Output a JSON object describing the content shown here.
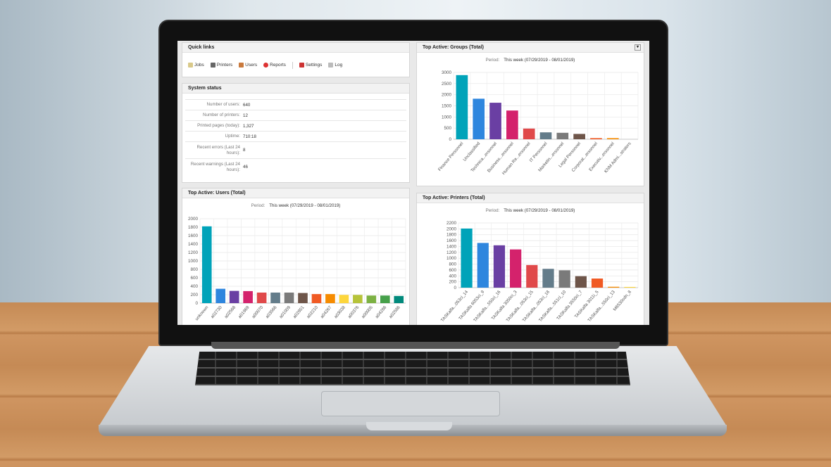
{
  "quick_links": {
    "title": "Quick links",
    "items": [
      {
        "label": "Jobs",
        "icon": "jobs-icon"
      },
      {
        "label": "Printers",
        "icon": "printer-icon"
      },
      {
        "label": "Users",
        "icon": "user-icon"
      },
      {
        "label": "Reports",
        "icon": "reports-icon"
      },
      {
        "label": "Settings",
        "icon": "settings-icon"
      },
      {
        "label": "Log",
        "icon": "log-icon"
      }
    ]
  },
  "system_status": {
    "title": "System status",
    "rows": [
      {
        "key": "Number of users:",
        "value": "640"
      },
      {
        "key": "Number of printers:",
        "value": "12"
      },
      {
        "key": "Printed pages (today):",
        "value": "1,327"
      },
      {
        "key": "Uptime:",
        "value": "710:18"
      },
      {
        "key": "Recent errors (Last 24 hours):",
        "value": "8"
      },
      {
        "key": "Recent warnings (Last 24 hours):",
        "value": "46"
      }
    ]
  },
  "period_label": "Period:",
  "period_value": "This week (07/29/2019 - 08/01/2019)",
  "colors": [
    "#00a3b9",
    "#2e86de",
    "#6a3fa3",
    "#d4226c",
    "#e0494a",
    "#637c8a",
    "#7a7a7a",
    "#6e5549",
    "#f05a24",
    "#f68b00",
    "#fdd63c",
    "#b6c339",
    "#7cb143",
    "#46a04a",
    "#00897b"
  ],
  "chart_data": [
    {
      "id": "users",
      "type": "bar",
      "title": "Top Active: Users (Total)",
      "ylim": [
        0,
        2000
      ],
      "yticks": [
        0,
        200,
        400,
        600,
        800,
        1000,
        1200,
        1400,
        1600,
        1800,
        2000
      ],
      "grid": true,
      "categories": [
        "unknown",
        "a02730",
        "a02568",
        "a01969",
        "a00070",
        "a03566",
        "a01009",
        "a02851",
        "a02210",
        "a04267",
        "a03038",
        "a00376",
        "a00005",
        "a04286",
        "a02586"
      ],
      "values": [
        1820,
        340,
        290,
        285,
        250,
        250,
        250,
        240,
        215,
        215,
        195,
        195,
        180,
        180,
        170
      ]
    },
    {
      "id": "groups",
      "type": "bar",
      "title": "Top Active: Groups (Total)",
      "ylim": [
        0,
        3000
      ],
      "yticks": [
        0,
        500,
        1000,
        1500,
        2000,
        2500,
        3000
      ],
      "grid": true,
      "categories": [
        "Finance Personnel",
        "Unclassified",
        "Technica...ersonnel",
        "Business...ersonnel",
        "Human Re...ersonnel",
        "IT Personnel",
        "Marketin...ersonnel",
        "Legal Personnel",
        "Corporat...ersonnel",
        "Executiv...ersonnel",
        "KNM Admi...strators"
      ],
      "values": [
        2880,
        1820,
        1640,
        1290,
        480,
        310,
        290,
        240,
        50,
        50,
        0
      ]
    },
    {
      "id": "printers",
      "type": "bar",
      "title": "Top Active: Printers (Total)",
      "ylim": [
        0,
        2200
      ],
      "yticks": [
        0,
        200,
        400,
        600,
        800,
        1000,
        1200,
        1400,
        1600,
        1800,
        2000,
        2200
      ],
      "grid": true,
      "categories": [
        "TASKalfa...053ci_14",
        "TASKalfa 6053ci_9",
        "TASKalfa...550ci_16",
        "TASKalfa 3050ci_3",
        "TASKalfa...053ci_15",
        "TASKalfa...053ci_18",
        "TASKalfa...551ci_10",
        "TASKalfa 3550ci_7",
        "TASKalfa 3011i_5",
        "TASKalfa...550ci_13",
        "M6530cdn_8"
      ],
      "values": [
        2010,
        1520,
        1440,
        1300,
        770,
        640,
        590,
        390,
        310,
        30,
        25
      ]
    }
  ]
}
